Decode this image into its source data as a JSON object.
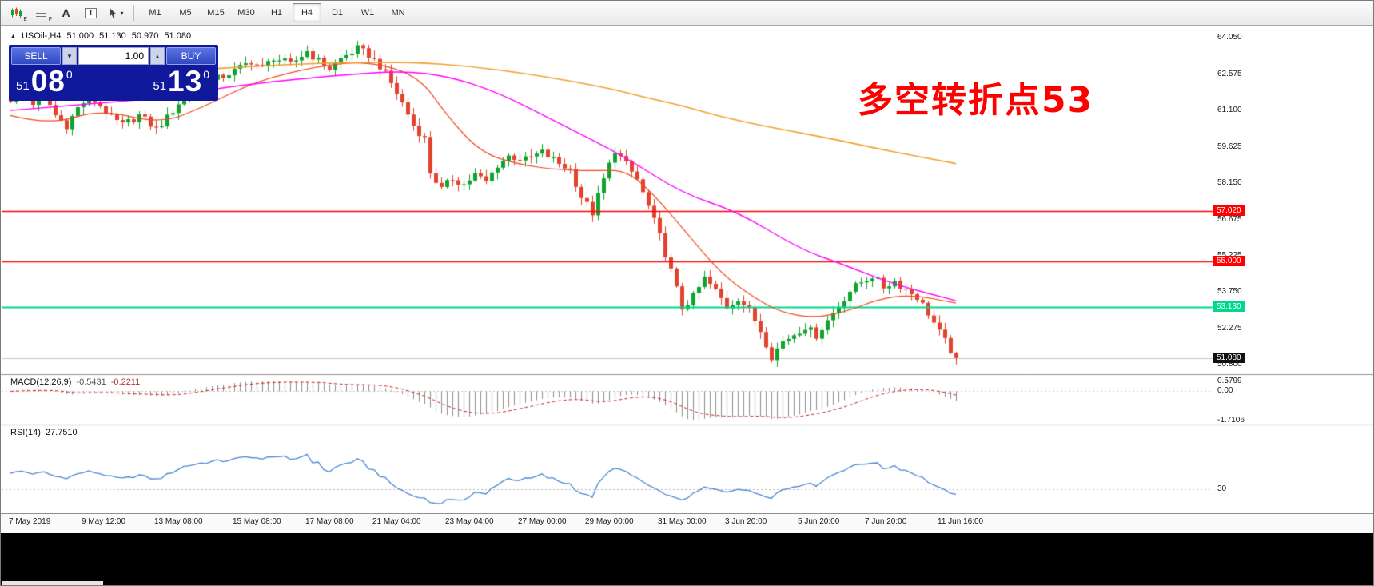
{
  "toolbar": {
    "icons": [
      {
        "name": "candlestick-chart-icon",
        "badge": "E"
      },
      {
        "name": "grid-lines-icon",
        "badge": "F"
      },
      {
        "name": "text-tool-icon",
        "glyph": "A"
      },
      {
        "name": "text-label-tool-icon",
        "glyph": "T"
      },
      {
        "name": "cursor-tool-icon",
        "caret": "▾"
      }
    ],
    "timeframes": [
      "M1",
      "M5",
      "M15",
      "M30",
      "H1",
      "H4",
      "D1",
      "W1",
      "MN"
    ],
    "active_timeframe": "H4"
  },
  "quote_header": {
    "expand_icon": "▲",
    "symbol_timeframe": "USOil-,H4",
    "open": "51.000",
    "high": "51.130",
    "low": "50.970",
    "close": "51.080"
  },
  "trade_panel": {
    "sell_label": "SELL",
    "buy_label": "BUY",
    "volume": "1.00",
    "down_arrow": "▼",
    "up_arrow": "▲",
    "sell_price": {
      "units": "51",
      "pips": "08",
      "point": "0"
    },
    "buy_price": {
      "units": "51",
      "pips": "13",
      "point": "0"
    }
  },
  "annotation": {
    "text": "多空转折点53",
    "color": "#ff0000"
  },
  "chart_data": {
    "type": "candlestick",
    "symbol": "USOil-",
    "timeframe": "H4",
    "bars_count": 170,
    "up_color": "#0fa32f",
    "down_color": "#e2432e",
    "noise": 0.16,
    "price_ticks": [
      "64.050",
      "62.575",
      "61.100",
      "59.625",
      "58.150",
      "56.675",
      "55.225",
      "53.750",
      "52.275",
      "50.800"
    ],
    "time_labels": [
      {
        "label": "7 May 2019",
        "bar": 0
      },
      {
        "label": "9 May 12:00",
        "bar": 13
      },
      {
        "label": "13 May 08:00",
        "bar": 26
      },
      {
        "label": "15 May 08:00",
        "bar": 40
      },
      {
        "label": "17 May 08:00",
        "bar": 53
      },
      {
        "label": "21 May 04:00",
        "bar": 65
      },
      {
        "label": "23 May 04:00",
        "bar": 78
      },
      {
        "label": "27 May 00:00",
        "bar": 91
      },
      {
        "label": "29 May 00:00",
        "bar": 103
      },
      {
        "label": "31 May 00:00",
        "bar": 116
      },
      {
        "label": "3 Jun 20:00",
        "bar": 128
      },
      {
        "label": "5 Jun 20:00",
        "bar": 141
      },
      {
        "label": "7 Jun 20:00",
        "bar": 153
      },
      {
        "label": "11 Jun 16:00",
        "bar": 166
      }
    ],
    "close_waypoints": [
      [
        0,
        61.55
      ],
      [
        2,
        62.0
      ],
      [
        4,
        61.4
      ],
      [
        6,
        61.75
      ],
      [
        8,
        60.9
      ],
      [
        10,
        60.5
      ],
      [
        12,
        61.2
      ],
      [
        14,
        61.65
      ],
      [
        16,
        61.3
      ],
      [
        18,
        60.8
      ],
      [
        20,
        60.5
      ],
      [
        23,
        60.9
      ],
      [
        26,
        60.35
      ],
      [
        28,
        60.8
      ],
      [
        31,
        61.7
      ],
      [
        34,
        62.1
      ],
      [
        37,
        62.4
      ],
      [
        40,
        62.7
      ],
      [
        43,
        63.1
      ],
      [
        45,
        62.8
      ],
      [
        47,
        63.25
      ],
      [
        50,
        62.95
      ],
      [
        53,
        63.5
      ],
      [
        55,
        63.1
      ],
      [
        57,
        62.8
      ],
      [
        59,
        63.2
      ],
      [
        62,
        63.6
      ],
      [
        64,
        63.35
      ],
      [
        66,
        62.9
      ],
      [
        68,
        62.2
      ],
      [
        70,
        61.4
      ],
      [
        72,
        60.5
      ],
      [
        74,
        59.95
      ],
      [
        75,
        58.6
      ],
      [
        77,
        57.9
      ],
      [
        79,
        58.35
      ],
      [
        81,
        58.1
      ],
      [
        83,
        58.5
      ],
      [
        85,
        58.2
      ],
      [
        87,
        58.9
      ],
      [
        89,
        59.25
      ],
      [
        92,
        59.1
      ],
      [
        95,
        59.4
      ],
      [
        98,
        58.95
      ],
      [
        100,
        58.7
      ],
      [
        102,
        57.6
      ],
      [
        104,
        56.95
      ],
      [
        106,
        58.3
      ],
      [
        108,
        59.5
      ],
      [
        110,
        58.9
      ],
      [
        112,
        58.3
      ],
      [
        114,
        57.2
      ],
      [
        116,
        56.0
      ],
      [
        118,
        54.6
      ],
      [
        120,
        53.1
      ],
      [
        122,
        53.55
      ],
      [
        124,
        54.3
      ],
      [
        126,
        53.8
      ],
      [
        128,
        53.15
      ],
      [
        130,
        53.5
      ],
      [
        132,
        53.0
      ],
      [
        134,
        52.2
      ],
      [
        136,
        51.15
      ],
      [
        138,
        51.75
      ],
      [
        140,
        52.05
      ],
      [
        142,
        52.35
      ],
      [
        144,
        52.0
      ],
      [
        146,
        52.6
      ],
      [
        148,
        53.2
      ],
      [
        150,
        53.8
      ],
      [
        152,
        54.15
      ],
      [
        154,
        54.4
      ],
      [
        156,
        53.95
      ],
      [
        158,
        54.2
      ],
      [
        160,
        53.85
      ],
      [
        162,
        53.55
      ],
      [
        164,
        52.9
      ],
      [
        166,
        52.1
      ],
      [
        168,
        51.4
      ],
      [
        169,
        51.08
      ]
    ],
    "moving_averages": [
      {
        "name": "fast-ma",
        "color": "#f04a22",
        "width": 1.2,
        "points": [
          [
            0,
            60.9
          ],
          [
            7,
            60.5
          ],
          [
            16,
            61.15
          ],
          [
            27,
            60.55
          ],
          [
            35,
            61.3
          ],
          [
            44,
            62.3
          ],
          [
            55,
            62.9
          ],
          [
            64,
            63.1
          ],
          [
            73,
            62.5
          ],
          [
            78,
            60.9
          ],
          [
            84,
            59.4
          ],
          [
            91,
            58.9
          ],
          [
            98,
            58.7
          ],
          [
            104,
            58.65
          ],
          [
            110,
            58.7
          ],
          [
            115,
            57.7
          ],
          [
            121,
            56.1
          ],
          [
            127,
            54.5
          ],
          [
            133,
            53.5
          ],
          [
            138,
            52.9
          ],
          [
            144,
            52.7
          ],
          [
            150,
            53.0
          ],
          [
            155,
            53.45
          ],
          [
            161,
            53.65
          ],
          [
            169,
            53.3
          ]
        ]
      },
      {
        "name": "mid-ma",
        "color": "#ff00ff",
        "width": 1.4,
        "points": [
          [
            0,
            61.1
          ],
          [
            13,
            61.35
          ],
          [
            27,
            61.6
          ],
          [
            37,
            62.0
          ],
          [
            48,
            62.3
          ],
          [
            60,
            62.55
          ],
          [
            70,
            62.7
          ],
          [
            78,
            62.5
          ],
          [
            87,
            61.85
          ],
          [
            98,
            60.6
          ],
          [
            110,
            59.2
          ],
          [
            120,
            57.75
          ],
          [
            130,
            57.0
          ],
          [
            141,
            55.5
          ],
          [
            149,
            54.85
          ],
          [
            158,
            54.05
          ],
          [
            169,
            53.4
          ]
        ]
      },
      {
        "name": "slow-ma",
        "color": "#f0a030",
        "width": 1.6,
        "points": [
          [
            37,
            62.8
          ],
          [
            48,
            62.95
          ],
          [
            60,
            63.05
          ],
          [
            72,
            63.05
          ],
          [
            82,
            62.9
          ],
          [
            92,
            62.6
          ],
          [
            100,
            62.3
          ],
          [
            108,
            61.95
          ],
          [
            113,
            61.65
          ],
          [
            120,
            61.3
          ],
          [
            127,
            60.85
          ],
          [
            134,
            60.5
          ],
          [
            141,
            60.2
          ],
          [
            148,
            59.9
          ],
          [
            155,
            59.55
          ],
          [
            162,
            59.25
          ],
          [
            169,
            58.95
          ]
        ]
      }
    ],
    "hlines": [
      {
        "price": 57.02,
        "label": "57.020",
        "color": "#ff0000",
        "width": 1.4
      },
      {
        "price": 55.0,
        "label": "55.000",
        "color": "#ff0000",
        "width": 1.4
      },
      {
        "price": 53.13,
        "label": "53.130",
        "color": "#00d98b",
        "width": 2
      }
    ],
    "current_price": {
      "value": 51.08,
      "label": "51.080",
      "line_color": "#c4c4c4",
      "badge_color": "#111111"
    },
    "macd": {
      "name": "MACD(12,26,9)",
      "value_main": "-0.5431",
      "value_signal": "-0.2211",
      "fast": 12,
      "slow": 26,
      "signal": 9,
      "axis_max": 0.5799,
      "axis_zero": 0.0,
      "axis_min": -1.7106,
      "axis_labels": [
        "0.5799",
        "0.00",
        "-1.7106"
      ],
      "hist_color": "#8c8c8c",
      "signal_color": "#cc2222"
    },
    "rsi": {
      "name": "RSI(14)",
      "value": "27.7510",
      "period": 14,
      "level": 30,
      "level_label": "30",
      "line_color": "#4a86d2"
    }
  }
}
